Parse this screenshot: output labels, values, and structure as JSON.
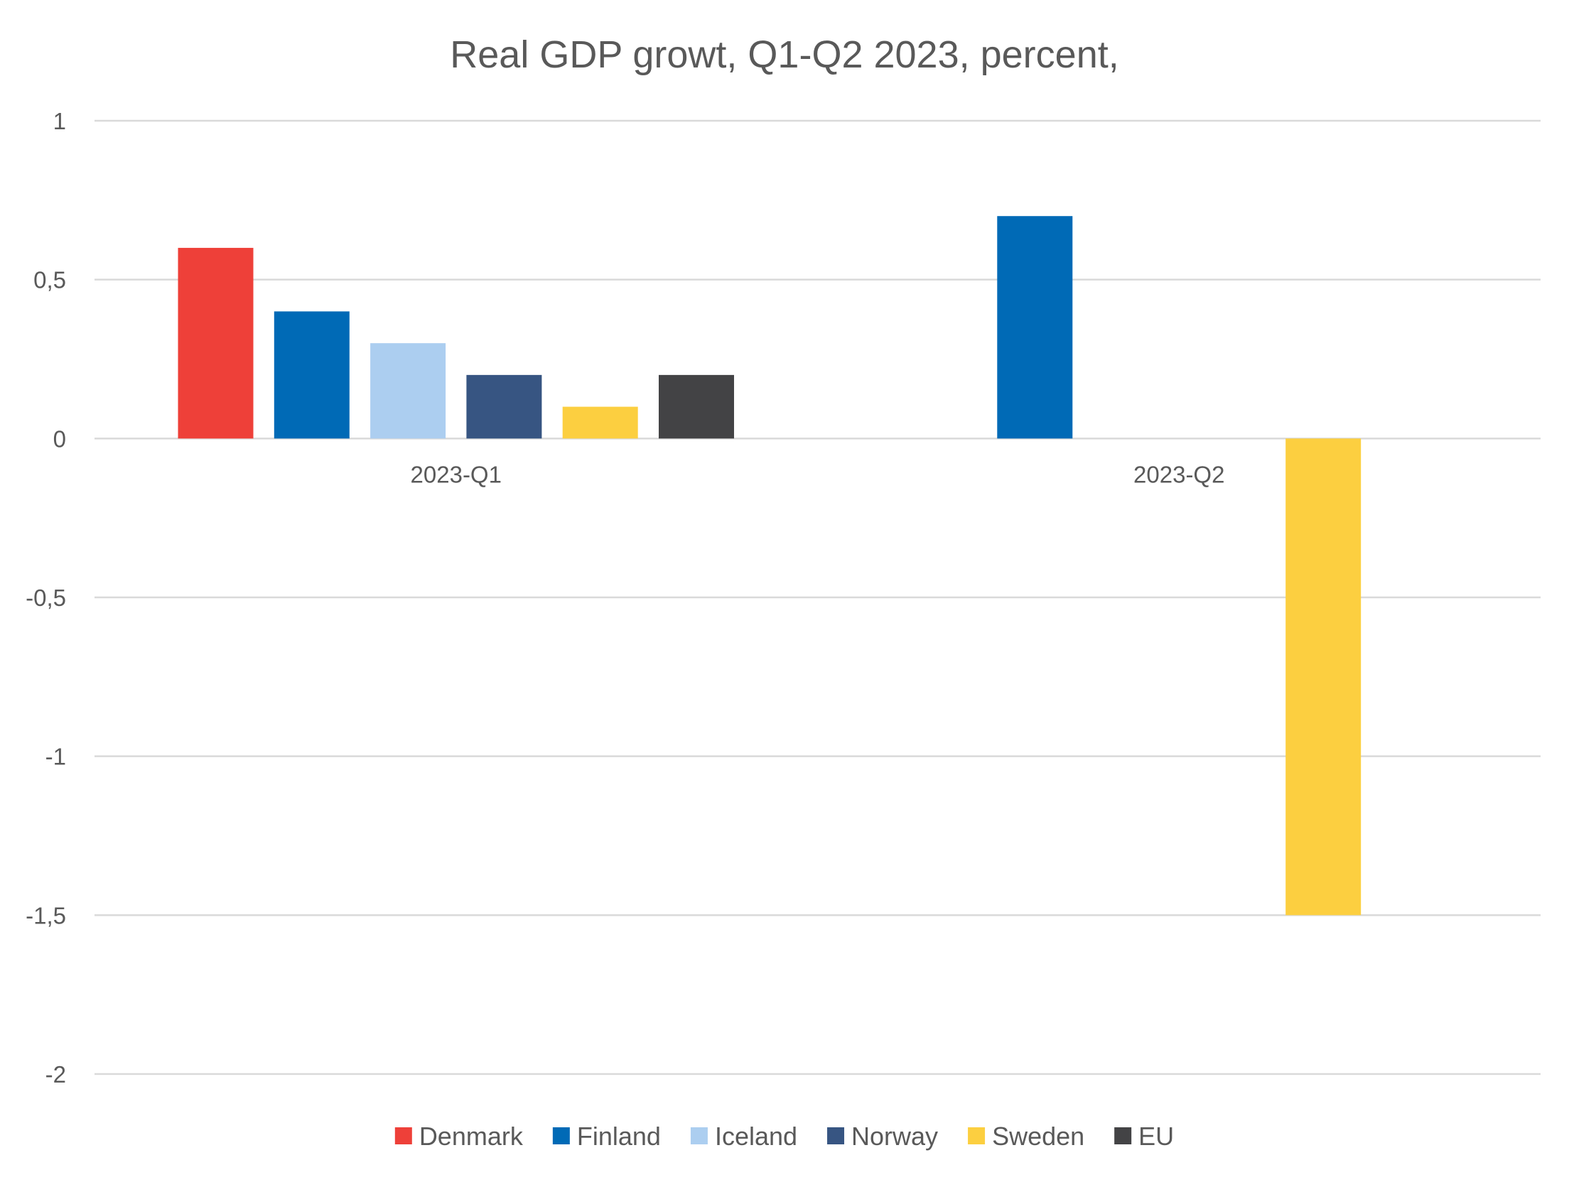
{
  "chart_data": {
    "type": "bar",
    "title": "Real GDP growt, Q1-Q2 2023, percent,",
    "xlabel": "",
    "ylabel": "",
    "categories": [
      "2023-Q1",
      "2023-Q2"
    ],
    "ylim": [
      -2,
      1
    ],
    "yticks": [
      1,
      0.5,
      0,
      -0.5,
      -1,
      -1.5,
      -2
    ],
    "ytick_labels": [
      "1",
      "0,5",
      "0",
      "-0,5",
      "-1",
      "-1,5",
      "-2"
    ],
    "grid": true,
    "legend_position": "bottom",
    "series": [
      {
        "name": "Denmark",
        "color": "#EE4039",
        "values": [
          0.6,
          null
        ]
      },
      {
        "name": "Finland",
        "color": "#006AB6",
        "values": [
          0.4,
          0.7
        ]
      },
      {
        "name": "Iceland",
        "color": "#ACCEF0",
        "values": [
          0.3,
          null
        ]
      },
      {
        "name": "Norway",
        "color": "#375582",
        "values": [
          0.2,
          null
        ]
      },
      {
        "name": "Sweden",
        "color": "#FCCF40",
        "values": [
          0.1,
          -1.5
        ]
      },
      {
        "name": "EU",
        "color": "#434345",
        "values": [
          0.2,
          null
        ]
      }
    ]
  }
}
